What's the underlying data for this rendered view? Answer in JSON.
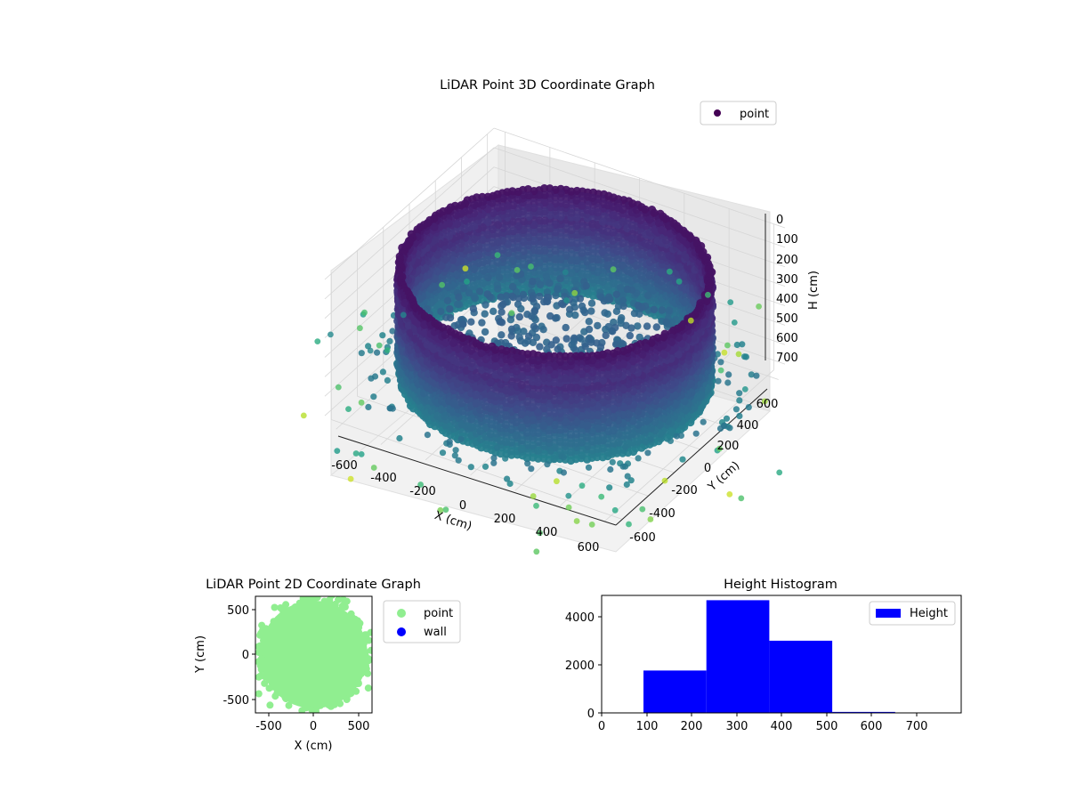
{
  "chart_data": [
    {
      "type": "scatter",
      "projection": "3d",
      "title": "LiDAR Point 3D Coordinate Graph",
      "xlabel": "X (cm)",
      "ylabel": "Y (cm)",
      "zlabel": "H (cm)",
      "xticks": [
        "-600",
        "-400",
        "-200",
        "0",
        "200",
        "400",
        "600"
      ],
      "yticks": [
        "-600",
        "-400",
        "-200",
        "0",
        "200",
        "400",
        "600"
      ],
      "zticks": [
        "0",
        "100",
        "200",
        "300",
        "400",
        "500",
        "600",
        "700"
      ],
      "xlim": [
        -650,
        650
      ],
      "ylim": [
        -650,
        650
      ],
      "zlim": [
        0,
        750
      ],
      "z_inverted": true,
      "colormap": "viridis",
      "grid": true,
      "legend": {
        "placement": "top-right",
        "entries": [
          {
            "label": "point",
            "color": "#440154"
          }
        ]
      },
      "series": [
        {
          "name": "point",
          "shape": "cylindrical wall",
          "radius": 600,
          "height_range": [
            100,
            650
          ]
        }
      ]
    },
    {
      "type": "scatter",
      "title": "LiDAR Point 2D Coordinate Graph",
      "xlabel": "X (cm)",
      "ylabel": "Y (cm)",
      "xticks": [
        "-500",
        "0",
        "500"
      ],
      "yticks": [
        "-500",
        "0",
        "500"
      ],
      "xlim": [
        -650,
        650
      ],
      "ylim": [
        -650,
        650
      ],
      "legend": {
        "placement": "right",
        "entries": [
          {
            "label": "point",
            "color": "#90ee90"
          },
          {
            "label": "wall",
            "color": "#0000ff"
          }
        ]
      },
      "series": [
        {
          "name": "point",
          "color": "#90ee90",
          "shape": "filled disc",
          "radius": 600
        },
        {
          "name": "wall",
          "color": "#0000ff",
          "values": []
        }
      ]
    },
    {
      "type": "bar",
      "title": "Height Histogram",
      "xticks": [
        "0",
        "100",
        "200",
        "300",
        "400",
        "500",
        "600",
        "700"
      ],
      "yticks": [
        "0",
        "2000",
        "4000"
      ],
      "xlim": [
        0,
        800
      ],
      "ylim": [
        0,
        4850
      ],
      "color": "#0000ff",
      "legend": {
        "placement": "top-right",
        "entries": [
          {
            "label": "Height",
            "color": "#0000ff"
          }
        ]
      },
      "bins": [
        {
          "x0": 93,
          "x1": 233,
          "value": 1750
        },
        {
          "x0": 233,
          "x1": 373,
          "value": 4650
        },
        {
          "x0": 373,
          "x1": 513,
          "value": 2980
        },
        {
          "x0": 513,
          "x1": 653,
          "value": 40
        }
      ]
    }
  ]
}
